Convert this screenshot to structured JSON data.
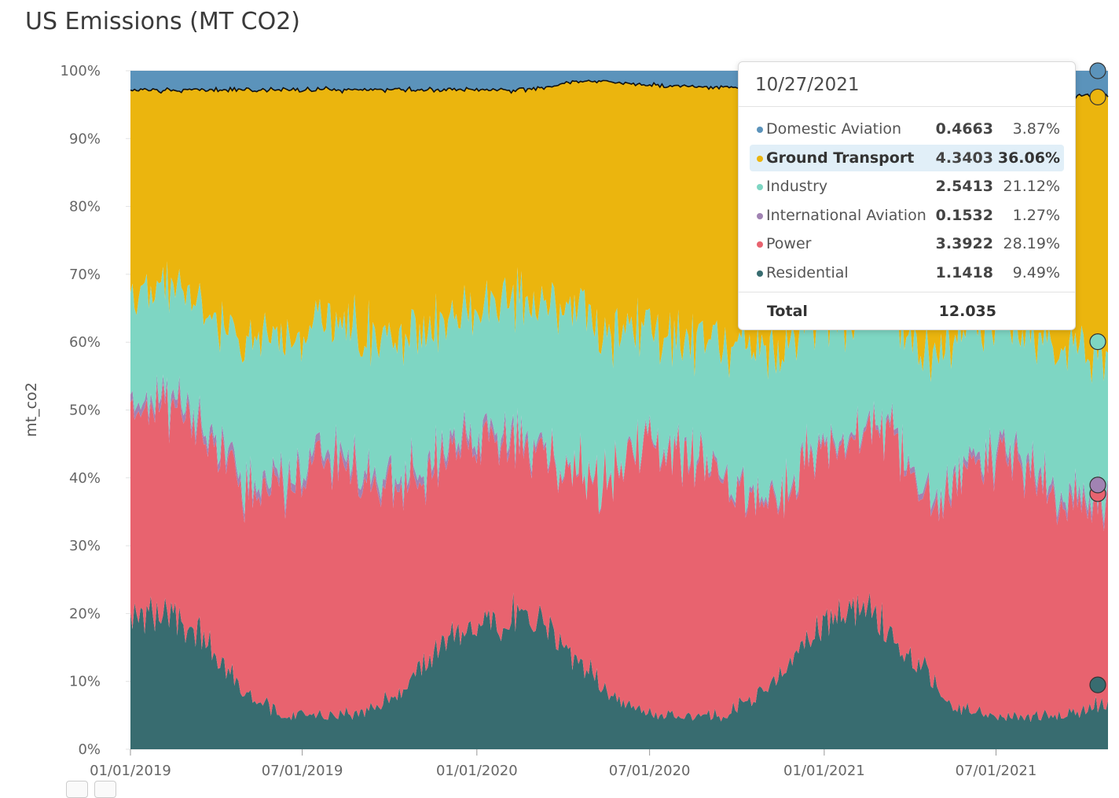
{
  "chart_data": {
    "type": "area",
    "stacked": true,
    "normalized": true,
    "title": "US Emissions (MT CO2)",
    "ylabel": "mt_co2",
    "xlabel": "",
    "ylim": [
      0,
      100
    ],
    "y_ticks": [
      "0%",
      "10%",
      "20%",
      "30%",
      "40%",
      "50%",
      "60%",
      "70%",
      "80%",
      "90%",
      "100%"
    ],
    "x_ticks": [
      "01/01/2019",
      "07/01/2019",
      "01/01/2020",
      "07/01/2020",
      "01/01/2021",
      "07/01/2021"
    ],
    "x_range": [
      "2019-01-01",
      "2021-10-27"
    ],
    "x": [
      "2019-01",
      "2019-02",
      "2019-03",
      "2019-04",
      "2019-05",
      "2019-06",
      "2019-07",
      "2019-08",
      "2019-09",
      "2019-10",
      "2019-11",
      "2019-12",
      "2020-01",
      "2020-02",
      "2020-03",
      "2020-04",
      "2020-05",
      "2020-06",
      "2020-07",
      "2020-08",
      "2020-09",
      "2020-10",
      "2020-11",
      "2020-12",
      "2021-01",
      "2021-02",
      "2021-03",
      "2021-04",
      "2021-05",
      "2021-06",
      "2021-07",
      "2021-08",
      "2021-09",
      "2021-10"
    ],
    "series": [
      {
        "name": "Residential",
        "color": "#386c70",
        "values": [
          20,
          20,
          17,
          11,
          7,
          5,
          5,
          5,
          6,
          9,
          14,
          18,
          19,
          19,
          18,
          13,
          9,
          6,
          5,
          5,
          5,
          7,
          11,
          17,
          20,
          22,
          16,
          12,
          7,
          5,
          5,
          5,
          5,
          7
        ]
      },
      {
        "name": "Power",
        "color": "#e8636f",
        "values": [
          30,
          31,
          31,
          31,
          30,
          34,
          38,
          37,
          33,
          29,
          28,
          29,
          27,
          26,
          24,
          28,
          31,
          38,
          40,
          39,
          35,
          30,
          27,
          26,
          24,
          26,
          30,
          24,
          32,
          38,
          38,
          35,
          31,
          30
        ]
      },
      {
        "name": "International Aviation",
        "color": "#a183b3",
        "values": [
          1.2,
          1.2,
          1.2,
          1.2,
          1.2,
          1.2,
          1.2,
          1.2,
          1.2,
          1.2,
          1.2,
          1.2,
          1.2,
          1.2,
          0.6,
          0.3,
          0.3,
          0.4,
          0.5,
          0.6,
          0.6,
          0.7,
          0.7,
          0.7,
          0.7,
          0.7,
          0.8,
          0.9,
          1.0,
          1.1,
          1.2,
          1.2,
          1.2,
          1.3
        ]
      },
      {
        "name": "Industry",
        "color": "#7ed6c3",
        "values": [
          16,
          16,
          17,
          18,
          22,
          20,
          19,
          19,
          20,
          21,
          20,
          18,
          19,
          20,
          22,
          25,
          22,
          18,
          16,
          17,
          19,
          22,
          21,
          19,
          18,
          16,
          17,
          20,
          21,
          20,
          19,
          20,
          22,
          21
        ]
      },
      {
        "name": "Ground Transport",
        "color": "#ebb50e",
        "values": [
          30,
          29,
          31,
          36,
          37,
          37,
          34,
          35,
          37,
          37,
          34,
          31,
          31,
          31,
          32,
          33,
          37,
          37,
          38,
          38,
          38,
          37,
          38,
          35,
          35,
          33,
          33,
          40,
          36,
          34,
          35,
          36,
          38,
          36
        ]
      },
      {
        "name": "Domestic Aviation",
        "color": "#5b93bb",
        "values": [
          2.8,
          2.8,
          2.8,
          2.8,
          2.8,
          2.8,
          2.8,
          2.8,
          2.8,
          2.8,
          2.8,
          2.8,
          2.8,
          2.8,
          2.4,
          1.5,
          1.6,
          2.0,
          2.2,
          2.3,
          2.4,
          2.4,
          2.4,
          2.4,
          2.4,
          2.5,
          2.7,
          3.0,
          3.2,
          3.4,
          3.5,
          3.5,
          3.6,
          3.9
        ]
      }
    ],
    "tooltip": {
      "date": "10/27/2021",
      "rows": [
        {
          "name": "Domestic Aviation",
          "value": "0.4663",
          "pct": "3.87%",
          "color": "#5b93bb",
          "highlight": false
        },
        {
          "name": "Ground Transport",
          "value": "4.3403",
          "pct": "36.06%",
          "color": "#ebb50e",
          "highlight": true
        },
        {
          "name": "Industry",
          "value": "2.5413",
          "pct": "21.12%",
          "color": "#7ed6c3",
          "highlight": false
        },
        {
          "name": "International Aviation",
          "value": "0.1532",
          "pct": "1.27%",
          "color": "#a183b3",
          "highlight": false
        },
        {
          "name": "Power",
          "value": "3.3922",
          "pct": "28.19%",
          "color": "#e8636f",
          "highlight": false
        },
        {
          "name": "Residential",
          "value": "1.1418",
          "pct": "9.49%",
          "color": "#386c70",
          "highlight": false
        }
      ],
      "total_label": "Total",
      "total_value": "12.035"
    }
  }
}
